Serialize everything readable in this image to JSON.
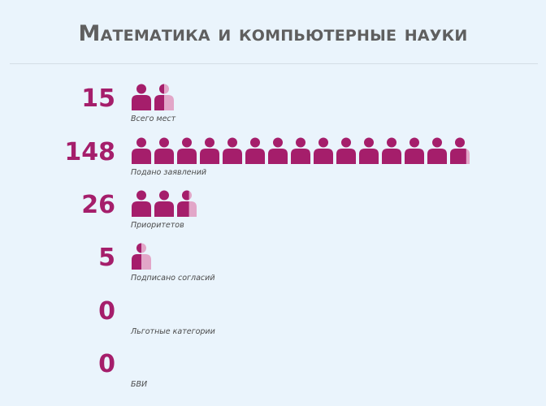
{
  "title": "Математика и компьютерные науки",
  "chart_data": {
    "type": "pictograph",
    "unit_per_icon": 10,
    "colors": {
      "full": "#a51e6b",
      "partial": "#e2a6c8",
      "value_text": "#a51e6b"
    },
    "rows": [
      {
        "value": 15,
        "value_label": "15",
        "label": "Всего мест"
      },
      {
        "value": 148,
        "value_label": "148",
        "label": "Подано заявлений"
      },
      {
        "value": 26,
        "value_label": "26",
        "label": "Приоритетов"
      },
      {
        "value": 5,
        "value_label": "5",
        "label": "Подписано согласий"
      },
      {
        "value": 0,
        "value_label": "0",
        "label": "Льготные категории"
      },
      {
        "value": 0,
        "value_label": "0",
        "label": "БВИ"
      }
    ]
  }
}
